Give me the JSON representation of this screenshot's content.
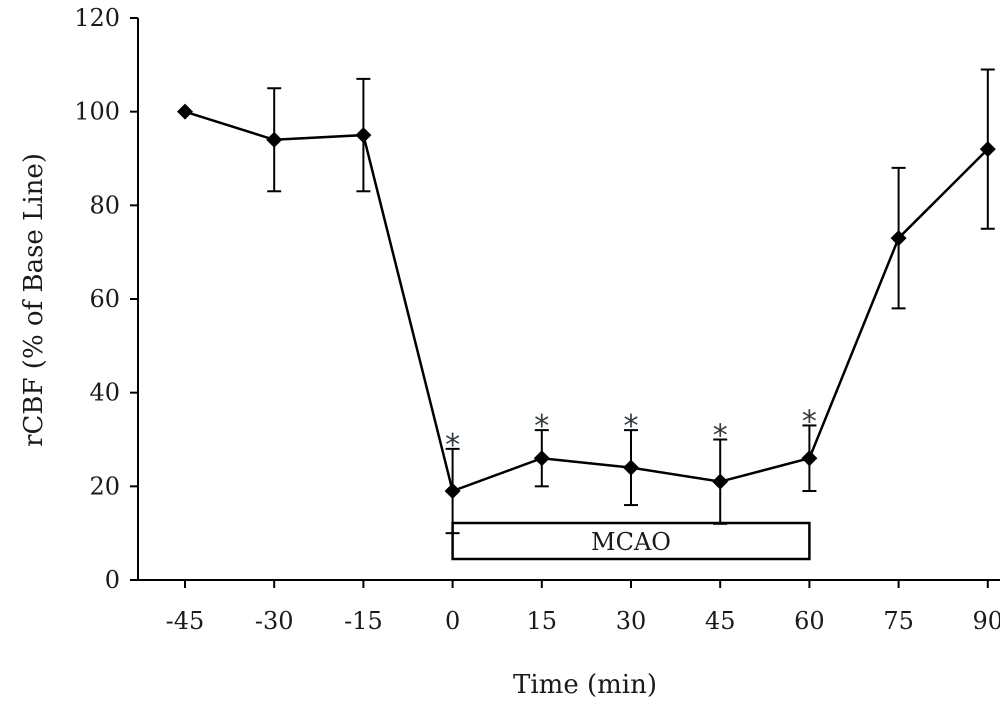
{
  "chart_data": {
    "type": "line",
    "title": "",
    "xlabel": "Time (min)",
    "ylabel": "rCBF (% of Base Line)",
    "x": [
      -45,
      -30,
      -15,
      0,
      15,
      30,
      45,
      60,
      75,
      90
    ],
    "x_tick_labels": [
      "-45",
      "-30",
      "-15",
      "0",
      "15",
      "30",
      "45",
      "60",
      "75",
      "90"
    ],
    "y_ticks": [
      0,
      20,
      40,
      60,
      80,
      100,
      120
    ],
    "y_tick_labels": [
      "0",
      "20",
      "40",
      "60",
      "80",
      "100",
      "120"
    ],
    "ylim": [
      0,
      120
    ],
    "series": [
      {
        "values": [
          100,
          94,
          95,
          19,
          26,
          24,
          21,
          26,
          73,
          92
        ],
        "error_low": [
          100,
          83,
          83,
          10,
          20,
          16,
          12,
          19,
          58,
          75
        ],
        "error_high": [
          100,
          105,
          107,
          28,
          32,
          32,
          30,
          33,
          88,
          109
        ],
        "marker": "diamond",
        "color": "#000000"
      }
    ],
    "significance": {
      "symbol": "*",
      "x": [
        0,
        15,
        30,
        45,
        60
      ],
      "color": "#2e3a40"
    },
    "annotation": {
      "label": "MCAO",
      "x_start": 0,
      "x_end": 60
    },
    "grid": false,
    "legend": "none"
  }
}
